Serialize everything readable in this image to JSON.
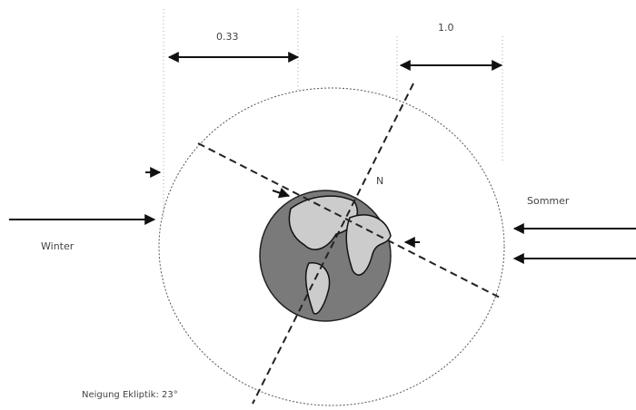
{
  "labels": {
    "distance_left": "0.33",
    "distance_right": "1.0",
    "north": "N",
    "summer": "Sommer",
    "winter": "Winter",
    "tilt": "Neigung Ekliptik: 23°"
  }
}
